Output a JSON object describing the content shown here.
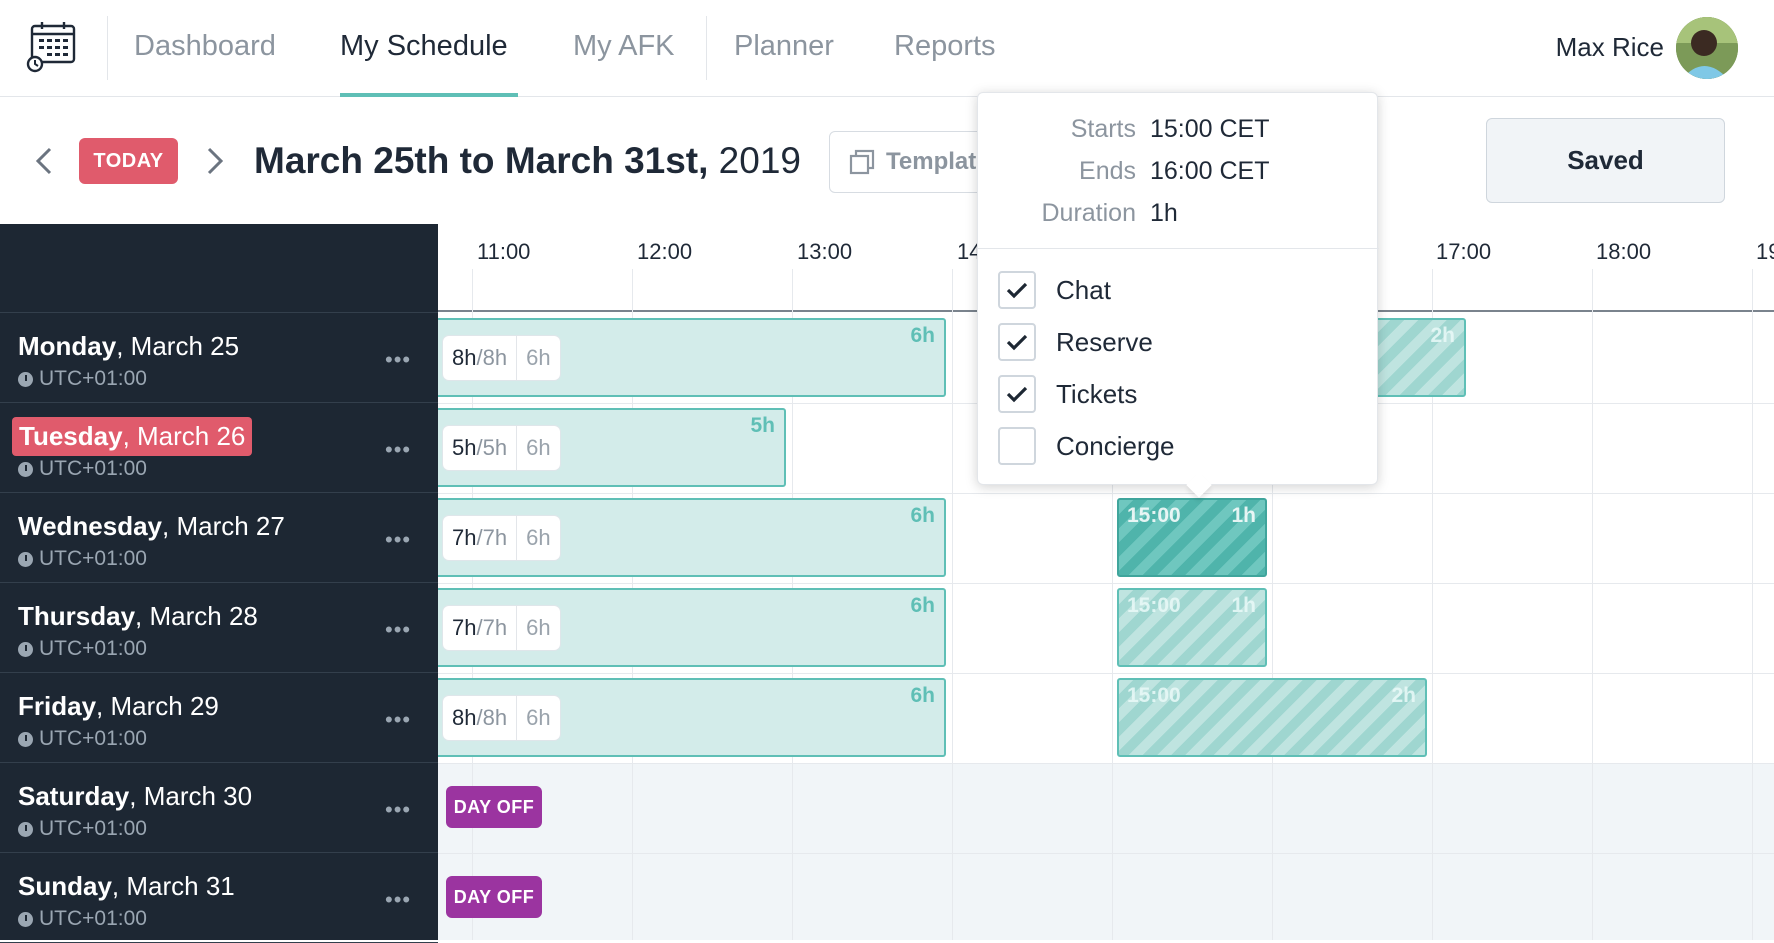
{
  "nav": {
    "items": [
      {
        "label": "Dashboard",
        "active": false
      },
      {
        "label": "My Schedule",
        "active": true
      },
      {
        "label": "My AFK",
        "active": false
      },
      {
        "label": "Planner",
        "active": false
      },
      {
        "label": "Reports",
        "active": false
      }
    ],
    "user_name": "Max Rice",
    "accent": "#5fbfb6"
  },
  "toolbar": {
    "today_label": "TODAY",
    "week_title_bold": "March 25th to March 31st,",
    "week_title_year": " 2019",
    "template_label": "Templat",
    "saved_label": "Saved"
  },
  "timeline": {
    "hours": [
      "11:00",
      "12:00",
      "13:00",
      "14",
      "17:00",
      "18:00",
      "19"
    ]
  },
  "days": [
    {
      "name": "Monday",
      "date": ", March 25",
      "tz": "UTC+01:00",
      "today": false,
      "pill_hours": "8h",
      "pill_total": "/8h",
      "pill_extra": "6h",
      "shift_duration": "6h",
      "hatch_duration": "2h"
    },
    {
      "name": "Tuesday",
      "date": ", March 26",
      "tz": "UTC+01:00",
      "today": true,
      "pill_hours": "5h",
      "pill_total": "/5h",
      "pill_extra": "6h",
      "shift_duration": "5h"
    },
    {
      "name": "Wednesday",
      "date": ", March 27",
      "tz": "UTC+01:00",
      "today": false,
      "pill_hours": "7h",
      "pill_total": "/7h",
      "pill_extra": "6h",
      "shift_duration": "6h",
      "hatch_time": "15:00",
      "hatch_duration": "1h"
    },
    {
      "name": "Thursday",
      "date": ", March 28",
      "tz": "UTC+01:00",
      "today": false,
      "pill_hours": "7h",
      "pill_total": "/7h",
      "pill_extra": "6h",
      "shift_duration": "6h",
      "hatch_time": "15:00",
      "hatch_duration": "1h"
    },
    {
      "name": "Friday",
      "date": ", March 29",
      "tz": "UTC+01:00",
      "today": false,
      "pill_hours": "8h",
      "pill_total": "/8h",
      "pill_extra": "6h",
      "shift_duration": "6h",
      "hatch_time": "15:00",
      "hatch_duration": "2h"
    },
    {
      "name": "Saturday",
      "date": ", March 30",
      "tz": "UTC+01:00",
      "today": false,
      "day_off": "DAY OFF"
    },
    {
      "name": "Sunday",
      "date": ", March 31",
      "tz": "UTC+01:00",
      "today": false,
      "day_off": "DAY OFF"
    }
  ],
  "popover": {
    "starts_label": "Starts",
    "starts_value": "15:00 CET",
    "ends_label": "Ends",
    "ends_value": "16:00 CET",
    "duration_label": "Duration",
    "duration_value": "1h",
    "options": [
      {
        "label": "Chat",
        "checked": true
      },
      {
        "label": "Reserve",
        "checked": true
      },
      {
        "label": "Tickets",
        "checked": true
      },
      {
        "label": "Concierge",
        "checked": false
      }
    ]
  },
  "colors": {
    "today_red": "#e05b6c",
    "day_off_purple": "#9b34a0",
    "sidebar_bg": "#1d2733",
    "shift_fill": "#d3ecea"
  }
}
